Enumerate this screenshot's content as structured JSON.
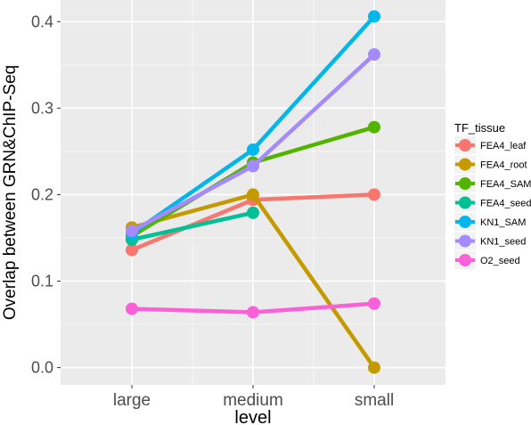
{
  "chart_data": {
    "type": "line",
    "xlabel": "level",
    "ylabel": "Overlap between GRN&ChIP-Seq",
    "categories": [
      "large",
      "medium",
      "small"
    ],
    "ylim": [
      -0.02,
      0.425
    ],
    "yticks": [
      0.0,
      0.1,
      0.2,
      0.3,
      0.4
    ],
    "ytick_labels": [
      "0.0",
      "0.1",
      "0.2",
      "0.3",
      "0.4"
    ],
    "grid": true,
    "legend": {
      "title": "TF_tissue",
      "placement": "right"
    },
    "series": [
      {
        "name": "FEA4_leaf",
        "color": "#F8766D",
        "values": [
          0.136,
          0.194,
          0.2
        ]
      },
      {
        "name": "FEA4_root",
        "color": "#C49A00",
        "values": [
          0.162,
          0.2,
          0.0
        ]
      },
      {
        "name": "FEA4_SAM",
        "color": "#53B400",
        "values": [
          0.152,
          0.237,
          0.278
        ]
      },
      {
        "name": "FEA4_seed",
        "color": "#00C094",
        "values": [
          0.148,
          0.179,
          null
        ]
      },
      {
        "name": "KN1_SAM",
        "color": "#00B6EB",
        "values": [
          0.155,
          0.252,
          0.406
        ]
      },
      {
        "name": "KN1_seed",
        "color": "#A58AFF",
        "values": [
          0.158,
          0.233,
          0.362
        ]
      },
      {
        "name": "O2_seed",
        "color": "#FB61D7",
        "values": [
          0.068,
          0.064,
          0.074
        ]
      }
    ]
  }
}
